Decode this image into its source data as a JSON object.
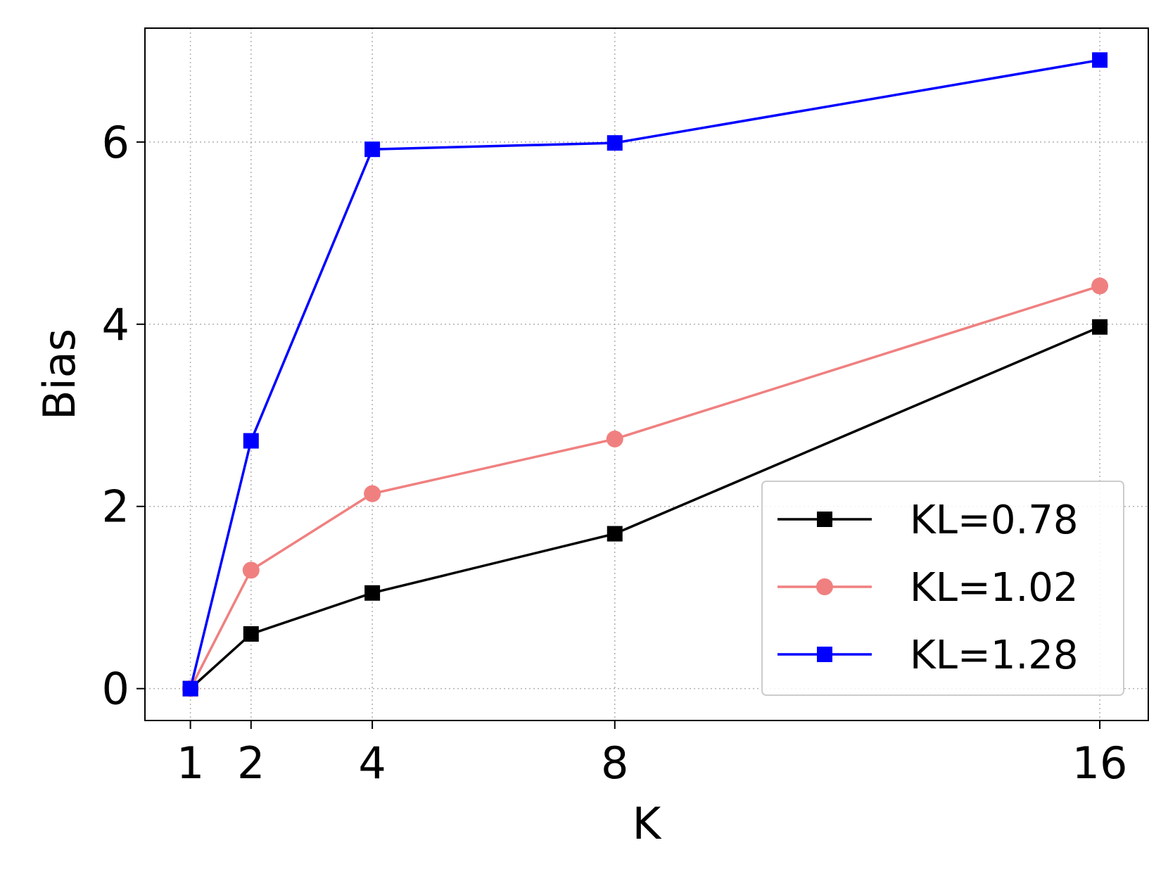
{
  "chart_data": {
    "type": "line",
    "title": "",
    "xlabel": "K",
    "ylabel": "Bias",
    "x": [
      1,
      2,
      4,
      8,
      16
    ],
    "xticks": [
      "1",
      "2",
      "4",
      "8",
      "16"
    ],
    "yticks": [
      "0",
      "2",
      "4",
      "6"
    ],
    "xlim": [
      0.25,
      16.8
    ],
    "ylim": [
      -0.35,
      7.25
    ],
    "grid": true,
    "legend_position": "lower-right",
    "series": [
      {
        "name": "KL=0.78",
        "values": [
          0.0,
          0.6,
          1.05,
          1.7,
          3.97
        ],
        "color": "#000000",
        "marker": "square"
      },
      {
        "name": "KL=1.02",
        "values": [
          0.0,
          1.3,
          2.14,
          2.74,
          4.42
        ],
        "color": "#f08080",
        "marker": "circle"
      },
      {
        "name": "KL=1.28",
        "values": [
          0.0,
          2.72,
          5.92,
          5.99,
          6.9
        ],
        "color": "#0000ff",
        "marker": "square"
      }
    ]
  }
}
